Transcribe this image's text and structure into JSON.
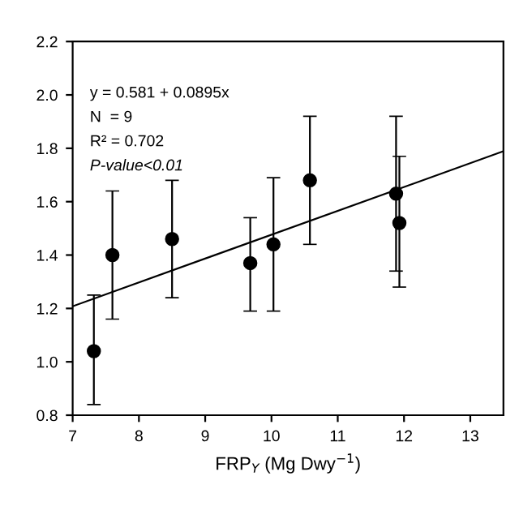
{
  "chart_data": {
    "type": "scatter",
    "xlabel": "FRP$_{Y}$ (Mg Dwy$^{−1}$)",
    "annotations": [
      "y = 0.581 + 0.0895x",
      "N  = 9",
      "R² = 0.702",
      "P-value<0.01"
    ],
    "xlim": [
      7,
      13.5
    ],
    "xticks": [
      7,
      8,
      9,
      10,
      11,
      12,
      13
    ],
    "ylim": [
      0.8,
      2.2
    ],
    "yticks": [
      0.8,
      {
        "value": 1,
        "label": "1.0"
      },
      1.2,
      1.4,
      1.6,
      1.8,
      {
        "value": 2,
        "label": "2.0"
      },
      2.2
    ],
    "grid": false,
    "legend": false,
    "series": [
      {
        "marker": "circle",
        "color": "#000000",
        "x": [
          7.32,
          7.6,
          8.5,
          9.68,
          10.03,
          10.58,
          11.88,
          11.93
        ],
        "values": [
          1.04,
          1.4,
          1.46,
          1.37,
          1.44,
          1.68,
          1.63,
          1.52
        ],
        "errors": [
          [
            0.84,
            1.25
          ],
          [
            1.16,
            1.64
          ],
          [
            1.24,
            1.68
          ],
          [
            1.19,
            1.54
          ],
          [
            1.19,
            1.69
          ],
          [
            1.44,
            1.92
          ],
          [
            1.34,
            1.92
          ],
          [
            1.28,
            1.77
          ]
        ]
      },
      {
        "type": "line",
        "color": "#000000",
        "x": [
          7,
          13.5
        ],
        "values": [
          1.208,
          1.789
        ],
        "line_style": "solid"
      }
    ]
  }
}
